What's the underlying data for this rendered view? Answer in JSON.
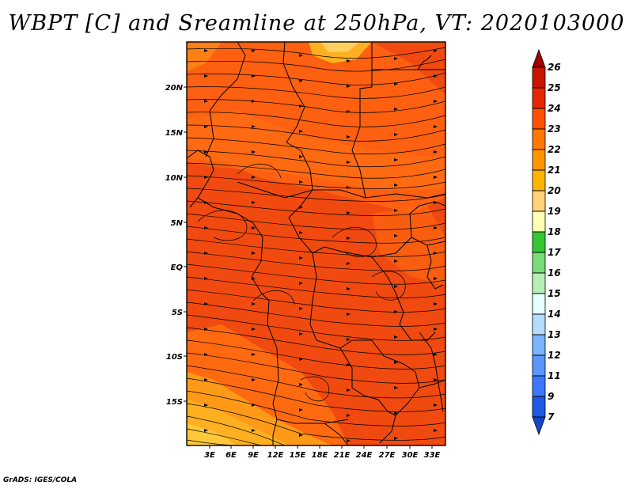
{
  "title": "WBPT [C] and Sreamline at 250hPa, VT: 2020103000",
  "credit": "GrADS: IGES/COLA",
  "lat_labels": [
    "20N",
    "15N",
    "10N",
    "5N",
    "EQ",
    "5S",
    "10S",
    "15S"
  ],
  "lon_labels": [
    "3E",
    "6E",
    "9E",
    "12E",
    "15E",
    "18E",
    "21E",
    "24E",
    "27E",
    "30E",
    "33E"
  ],
  "colorbar": {
    "labels": [
      "26",
      "25",
      "24",
      "23",
      "22",
      "21",
      "20",
      "19",
      "18",
      "17",
      "16",
      "15",
      "14",
      "13",
      "12",
      "11",
      "9",
      "7"
    ],
    "colors": [
      "#a00000",
      "#c81400",
      "#e62800",
      "#ff5000",
      "#ff7800",
      "#ff9600",
      "#ffb400",
      "#ffd278",
      "#ffffb4",
      "#32c832",
      "#78dc78",
      "#b4f0b4",
      "#e6ffff",
      "#b4dcff",
      "#78b4ff",
      "#5a96ff",
      "#3c78ff",
      "#1e5ae6",
      "#1446c8"
    ]
  },
  "fill_colors": {
    "main": "#f04a10",
    "warm": "#ff6a10",
    "cool": "#ffb020",
    "edge": "#ffd060"
  }
}
